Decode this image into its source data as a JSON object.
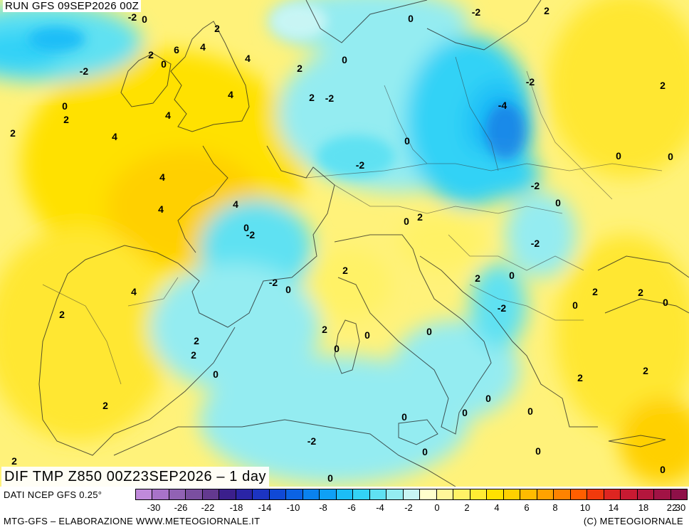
{
  "run_label": "RUN GFS 09SEP2026 00Z",
  "main_title": "DIF TMP Z850 00Z23SEP2026 – 1 day",
  "source_label": "DATI NCEP GFS 0.25°",
  "credit_label": "MTG-GFS – ELABORAZIONE WWW.METEOGIORNALE.IT",
  "copyright_label": "(C) METEOGIORNALE",
  "colors": {
    "bar": [
      "#c08adb",
      "#a873c9",
      "#9162b4",
      "#7a4fa0",
      "#63398f",
      "#3b1f8c",
      "#2a24a6",
      "#1c34c2",
      "#1049d6",
      "#0b63e4",
      "#0a82ef",
      "#0fa0f5",
      "#1cbdf7",
      "#33d2f6",
      "#5fe1f2",
      "#94ecf1",
      "#c8f5f4",
      "#ffffcc",
      "#fff799",
      "#fff266",
      "#ffec33",
      "#ffe100",
      "#ffd000",
      "#ffbb00",
      "#ffa200",
      "#ff8300",
      "#ff5e00",
      "#f13a0c",
      "#de2521",
      "#c81a32",
      "#b4163d",
      "#a11345",
      "#8e1048"
    ]
  },
  "scale": {
    "tick_labels": [
      "-30",
      "-26",
      "-22",
      "-18",
      "-14",
      "-10",
      "-8",
      "-6",
      "-4",
      "-2",
      "0",
      "2",
      "4",
      "6",
      "8",
      "10",
      "14",
      "18",
      "22",
      "30"
    ]
  },
  "map_labels": [
    {
      "t": "-2"
    },
    {
      "t": "0"
    },
    {
      "t": "-2"
    },
    {
      "t": "2"
    },
    {
      "t": "0"
    },
    {
      "t": "2"
    },
    {
      "t": "6"
    },
    {
      "t": "4"
    },
    {
      "t": "2"
    },
    {
      "t": "0"
    },
    {
      "t": "4"
    },
    {
      "t": "2"
    },
    {
      "t": "-2"
    },
    {
      "t": "0"
    },
    {
      "t": "-2"
    },
    {
      "t": "2"
    },
    {
      "t": "4"
    },
    {
      "t": "2"
    },
    {
      "t": "-2"
    },
    {
      "t": "0"
    },
    {
      "t": "2"
    },
    {
      "t": "4"
    },
    {
      "t": "-4"
    },
    {
      "t": "2"
    },
    {
      "t": "4"
    },
    {
      "t": "0"
    },
    {
      "t": "0"
    },
    {
      "t": "0"
    },
    {
      "t": "-2"
    },
    {
      "t": "4"
    },
    {
      "t": "-2"
    },
    {
      "t": "0"
    },
    {
      "t": "4"
    },
    {
      "t": "4"
    },
    {
      "t": "0"
    },
    {
      "t": "2"
    },
    {
      "t": "0"
    },
    {
      "t": "-2"
    },
    {
      "t": "-2"
    },
    {
      "t": "2"
    },
    {
      "t": "-2"
    },
    {
      "t": "0"
    },
    {
      "t": "4"
    },
    {
      "t": "2"
    },
    {
      "t": "0"
    },
    {
      "t": "2"
    },
    {
      "t": "2"
    },
    {
      "t": "-2"
    },
    {
      "t": "0"
    },
    {
      "t": "0"
    },
    {
      "t": "0"
    },
    {
      "t": "2"
    },
    {
      "t": "0"
    },
    {
      "t": "0"
    },
    {
      "t": "2"
    },
    {
      "t": "2"
    },
    {
      "t": "2"
    },
    {
      "t": "0"
    },
    {
      "t": "2"
    },
    {
      "t": "2"
    },
    {
      "t": "0"
    },
    {
      "t": "0"
    },
    {
      "t": "2"
    },
    {
      "t": "0"
    },
    {
      "t": "0"
    },
    {
      "t": "0"
    },
    {
      "t": "-2"
    },
    {
      "t": "0"
    },
    {
      "t": "0"
    },
    {
      "t": "2"
    },
    {
      "t": "0"
    }
  ]
}
